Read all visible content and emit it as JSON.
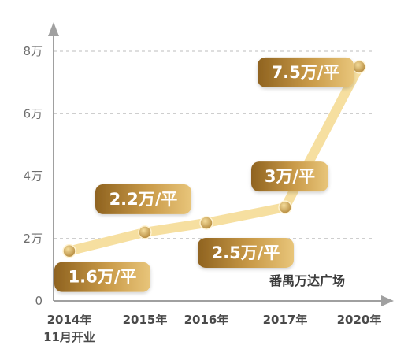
{
  "chart_data": {
    "type": "line",
    "x": [
      "2014年",
      "2015年",
      "2016年",
      "2017年",
      "2020年"
    ],
    "x_sublabels": [
      "11月开业",
      "",
      "",
      "",
      ""
    ],
    "series": [
      {
        "values": [
          1.6,
          2.2,
          2.5,
          3,
          7.5
        ]
      }
    ],
    "data_labels": [
      "1.6万/平",
      "2.2万/平",
      "2.5万/平",
      "3万/平",
      "7.5万/平"
    ],
    "y_ticks": [
      0,
      2,
      4,
      6,
      8
    ],
    "y_tick_labels": [
      "0",
      "2万",
      "4万",
      "6万",
      "8万"
    ],
    "ylim": [
      0,
      8
    ],
    "grid": true,
    "annotation": "番禺万达广场",
    "colors": {
      "line": "#f6dfa0",
      "marker": "#c9a050",
      "bubble_dark": "#8f6320",
      "bubble_light": "#e2bb6c",
      "axis": "#a0a0a0",
      "grid": "#bdbdbd"
    }
  }
}
